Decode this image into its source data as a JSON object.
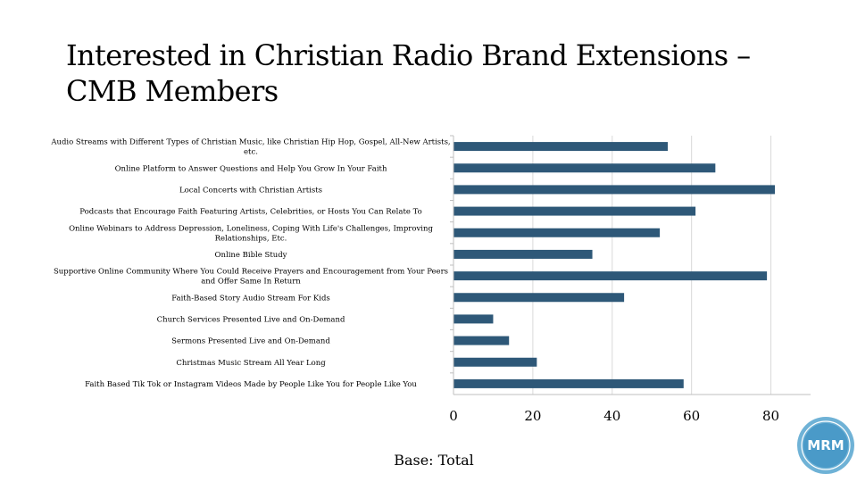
{
  "slide": {
    "title_line1": "Interested in Christian Radio Brand Extensions –",
    "title_line2": "CMB Members",
    "base_note": "Base: Total",
    "logo_text": "MRM"
  },
  "colors": {
    "bar": "#2e5878",
    "grid": "#d9d9d9",
    "axis": "#bfbfbf",
    "logo_ring": "#6fb2d6",
    "logo_fill": "#4a9ac8"
  },
  "chart_data": {
    "type": "bar",
    "orientation": "horizontal",
    "title": "",
    "xlabel": "",
    "ylabel": "",
    "xlim": [
      0,
      90
    ],
    "xticks": [
      0,
      20,
      40,
      60,
      80
    ],
    "grid": "vertical",
    "legend": "none",
    "categories": [
      [
        "Audio Streams with Different Types of Christian Music, like Christian Hip Hop, Gospel, All-New Artists,",
        "etc."
      ],
      [
        "Online Platform to Answer Questions and Help You Grow In Your Faith"
      ],
      [
        "Local Concerts with Christian Artists"
      ],
      [
        "Podcasts that Encourage Faith Featuring Artists, Celebrities, or Hosts You Can Relate To"
      ],
      [
        "Online Webinars to Address Depression, Loneliness, Coping With Life's Challenges, Improving",
        "Relationships, Etc."
      ],
      [
        "Online Bible Study"
      ],
      [
        "Supportive Online Community Where You Could Receive Prayers and Encouragement from Your Peers",
        "and Offer Same In Return"
      ],
      [
        "Faith-Based Story Audio Stream For Kids"
      ],
      [
        "Church Services Presented Live and On-Demand"
      ],
      [
        "Sermons Presented Live and On-Demand"
      ],
      [
        "Christmas Music Stream All Year Long"
      ],
      [
        "Faith Based Tik Tok or Instagram Videos Made by People Like You for People Like You"
      ]
    ],
    "values": [
      54,
      66,
      81,
      61,
      52,
      35,
      79,
      43,
      10,
      14,
      21,
      58
    ]
  }
}
